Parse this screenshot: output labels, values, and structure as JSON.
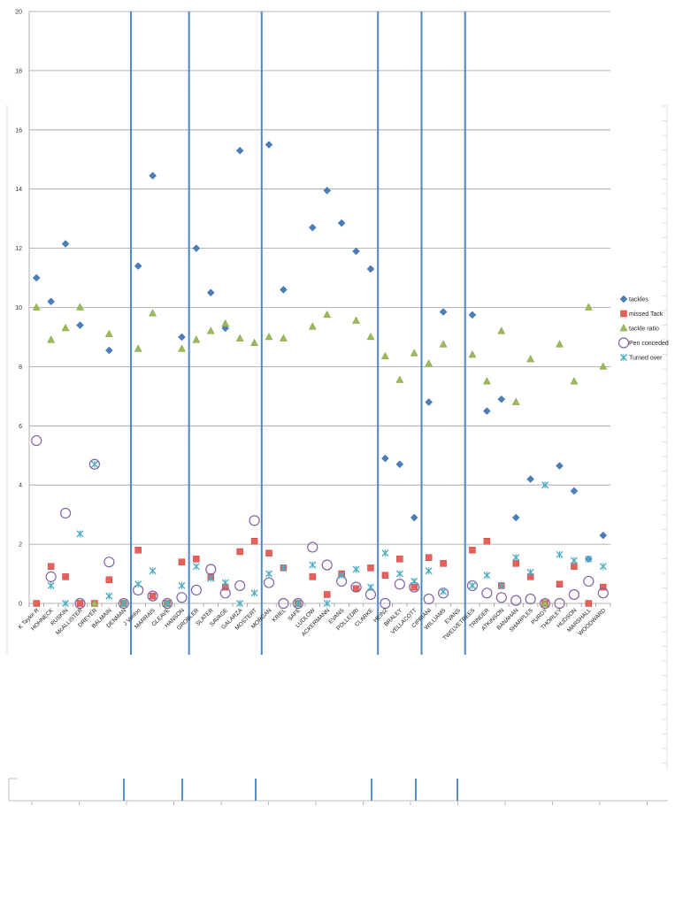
{
  "chart_data": {
    "type": "scatter",
    "title": "",
    "xlabel": "",
    "ylabel": "",
    "ylim": [
      0,
      20
    ],
    "yticks": [
      0,
      2,
      4,
      6,
      8,
      10,
      12,
      14,
      16,
      18,
      20
    ],
    "grid": true,
    "legend_position": "right",
    "categories": [
      "K Taylor R",
      "HOHNECK",
      "RUSKIN",
      "McALLISTER",
      "DREYER",
      "BALMAIN",
      "DENMAN",
      "J Vosloo",
      "MARRAIS",
      "GLEAVE",
      "HANSON",
      "GROBLER",
      "SLATER",
      "SAVAGE",
      "GALARZA",
      "MOSTERT",
      "MORGAN",
      "KRIEL",
      "SAFE",
      "LUDLOW",
      "ACKERMANN",
      "EVANS",
      "POLLEDRI",
      "CLARKE",
      "HEINZ",
      "BRALEY",
      "VELLACOTT",
      "CIPRIANI",
      "WILLIAMS",
      "EVANS",
      "TWELVETREES",
      "TRINDER",
      "ATKINSON",
      "BANAHAN",
      "SHARPLES",
      "PURDY",
      "THORLEY",
      "HUDSON",
      "MARSHALL",
      "WOODWARD"
    ],
    "group_dividers_after": [
      6,
      10,
      15,
      23,
      26,
      29
    ],
    "series": [
      {
        "name": "tackles",
        "color": "#4a7ebb",
        "marker": "diamond",
        "values": [
          11.0,
          10.2,
          12.15,
          9.4,
          null,
          8.55,
          null,
          11.4,
          14.45,
          null,
          9.0,
          12.0,
          10.5,
          9.3,
          15.3,
          null,
          15.5,
          10.6,
          null,
          12.7,
          13.95,
          12.85,
          11.9,
          11.3,
          4.9,
          4.7,
          2.9,
          6.8,
          9.85,
          null,
          9.75,
          6.5,
          6.9,
          2.9,
          4.2,
          null,
          4.65,
          3.8,
          1.5,
          2.3
        ]
      },
      {
        "name": "missed Tack",
        "color": "#e8605a",
        "marker": "square",
        "values": [
          0.0,
          1.25,
          0.9,
          0.0,
          0.0,
          0.8,
          0.0,
          1.8,
          0.25,
          0.0,
          1.4,
          1.5,
          0.9,
          0.55,
          1.75,
          2.1,
          1.7,
          1.2,
          0.0,
          0.9,
          0.3,
          1.0,
          0.5,
          1.2,
          0.95,
          1.5,
          0.55,
          1.55,
          1.35,
          null,
          1.8,
          2.1,
          0.6,
          1.35,
          0.9,
          0.0,
          0.65,
          1.25,
          0.0,
          0.55
        ]
      },
      {
        "name": "tackle ratio",
        "color": "#9bbb59",
        "marker": "triangle",
        "values": [
          10.0,
          8.9,
          9.3,
          10.0,
          0.0,
          9.1,
          0.0,
          8.6,
          9.8,
          0.0,
          8.6,
          8.9,
          9.2,
          9.45,
          8.95,
          8.8,
          9.0,
          8.95,
          0.0,
          9.35,
          9.75,
          null,
          9.55,
          9.0,
          8.35,
          7.55,
          8.45,
          8.1,
          8.75,
          null,
          8.4,
          7.5,
          9.2,
          6.8,
          8.25,
          0.0,
          8.75,
          7.5,
          10.0,
          8.0
        ]
      },
      {
        "name": "Pen conceded",
        "color": "#8064a2",
        "marker": "circle",
        "values": [
          5.5,
          0.9,
          3.05,
          0.0,
          4.7,
          1.4,
          0.0,
          0.45,
          0.25,
          0.0,
          0.2,
          0.45,
          1.15,
          0.35,
          0.6,
          2.8,
          0.7,
          0.0,
          0.0,
          1.9,
          1.3,
          0.75,
          0.55,
          0.3,
          0.0,
          0.65,
          0.55,
          0.15,
          0.35,
          null,
          0.6,
          0.35,
          0.2,
          0.1,
          0.15,
          0.0,
          0.0,
          0.3,
          0.75,
          0.35
        ]
      },
      {
        "name": "Turned over",
        "color": "#4bacc6",
        "marker": "x",
        "values": [
          null,
          0.6,
          0.0,
          2.35,
          4.7,
          0.25,
          0.0,
          0.65,
          1.1,
          0.0,
          0.6,
          1.25,
          0.85,
          0.7,
          0.0,
          0.35,
          1.0,
          1.2,
          0.0,
          1.3,
          0.0,
          0.95,
          1.15,
          0.55,
          1.7,
          1.0,
          0.75,
          1.1,
          0.4,
          null,
          0.6,
          0.95,
          0.6,
          1.55,
          1.05,
          4.0,
          1.65,
          1.45,
          1.5,
          1.25
        ]
      }
    ]
  }
}
